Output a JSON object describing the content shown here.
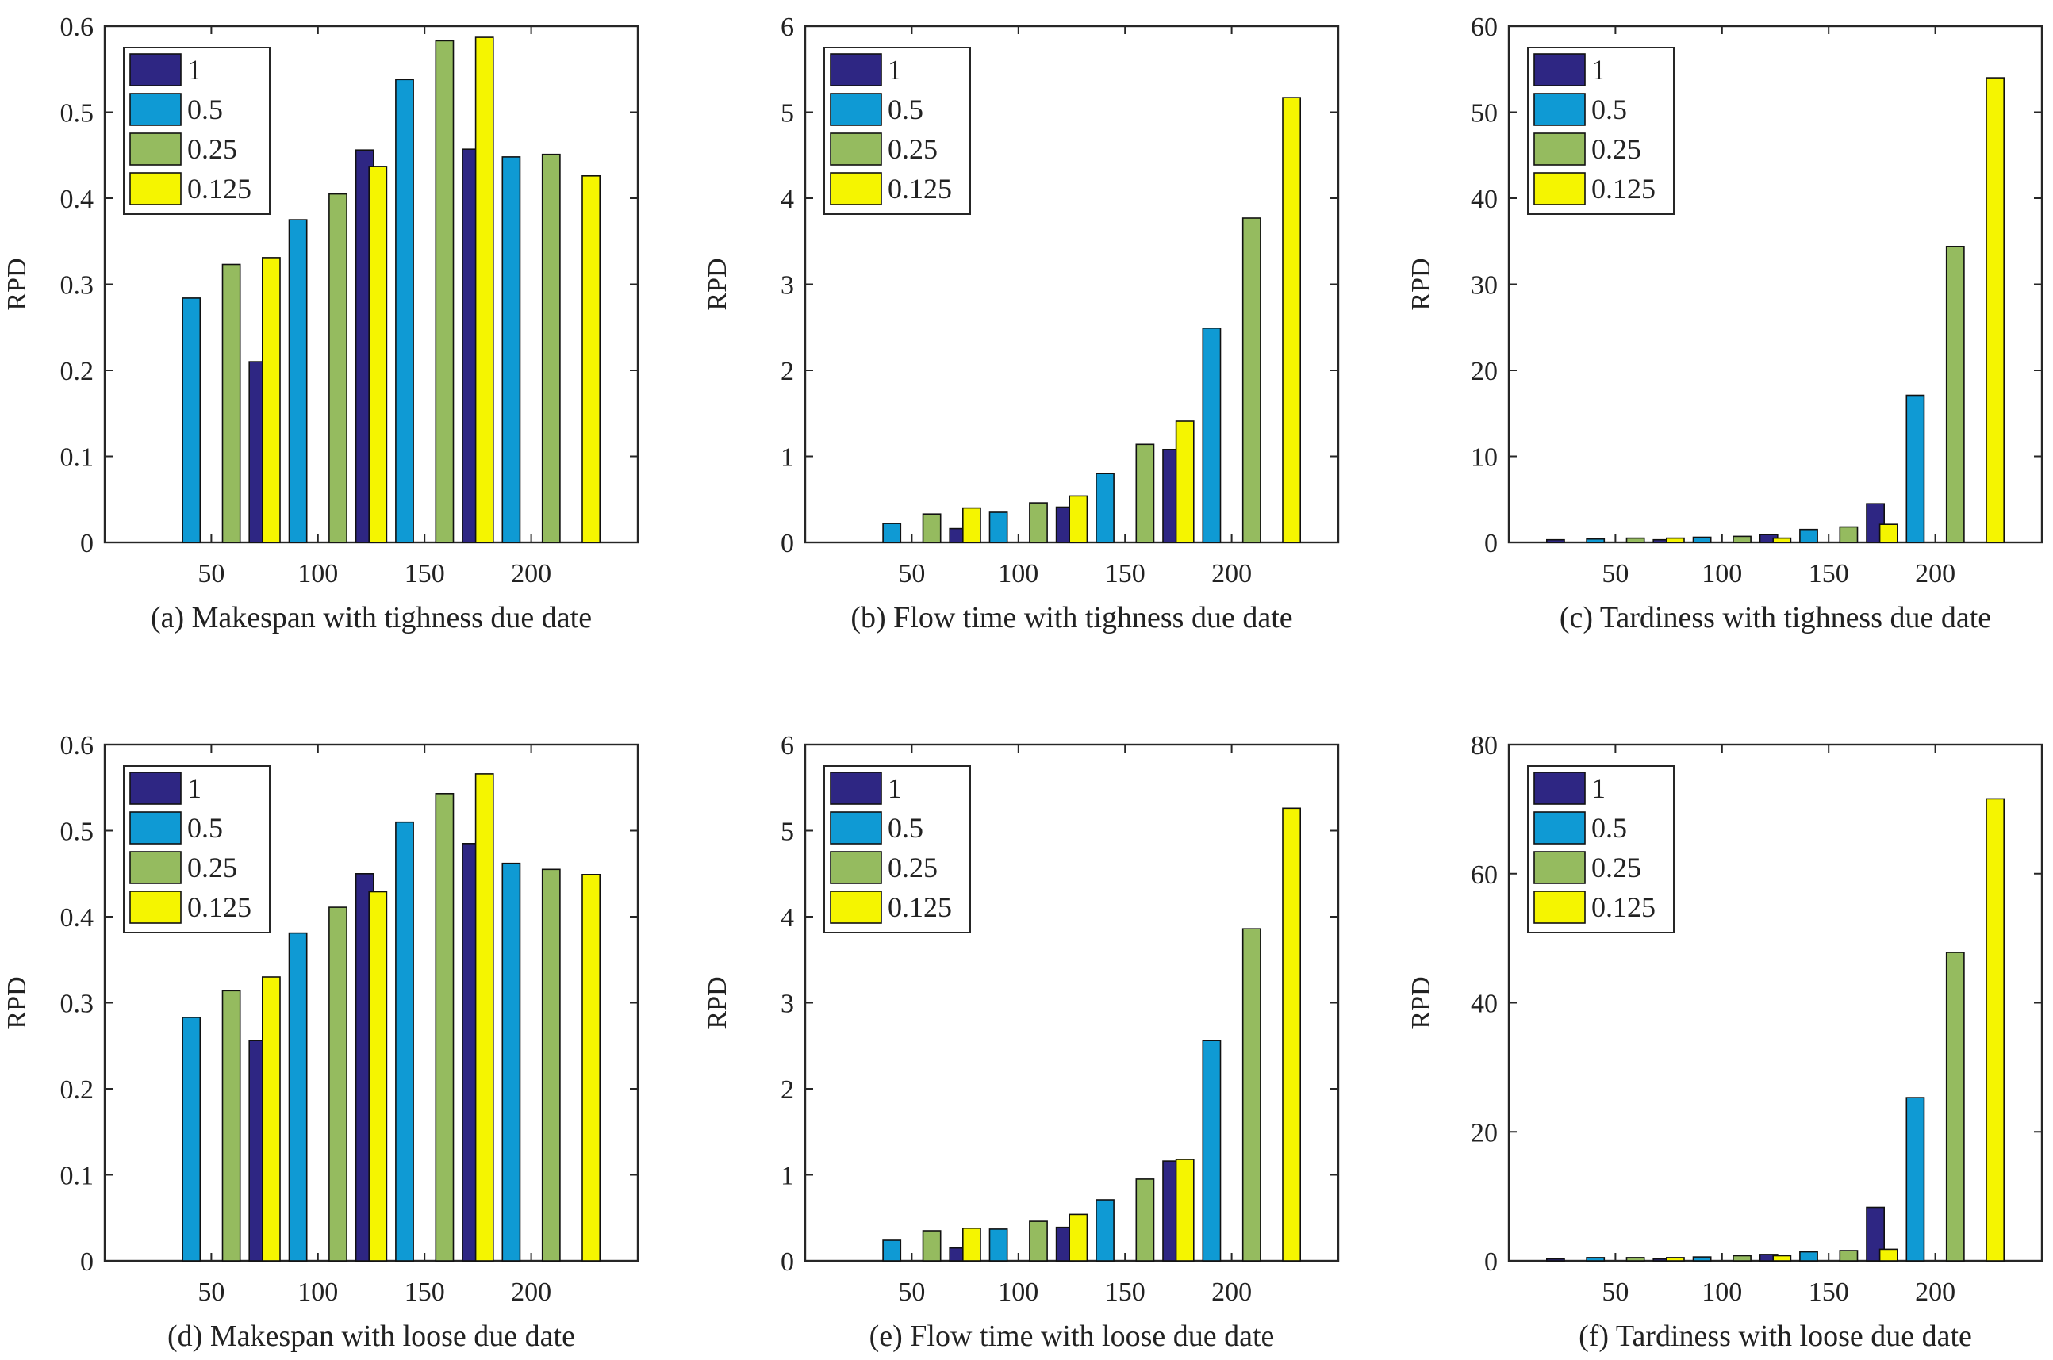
{
  "colors": {
    "series": [
      "#2e2683",
      "#0f9ad4",
      "#95bb5f",
      "#f5f500"
    ],
    "axis": "#262626",
    "background": "#ffffff"
  },
  "chart_data": [
    {
      "type": "bar",
      "caption": "(a) Makespan with tighness due date",
      "ylabel": "RPD",
      "categories": [
        "50",
        "100",
        "150",
        "200"
      ],
      "ylim": [
        0,
        0.6
      ],
      "yticks": [
        0,
        0.1,
        0.2,
        0.3,
        0.4,
        0.5,
        0.6
      ],
      "ytick_labels": [
        "0",
        "0.1",
        "0.2",
        "0.3",
        "0.4",
        "0.5",
        "0.6"
      ],
      "legend": "top-left",
      "series": [
        {
          "name": "1",
          "values": [
            0,
            0.21,
            0.456,
            0.457
          ]
        },
        {
          "name": "0.5",
          "values": [
            0.284,
            0.375,
            0.538,
            0.448
          ]
        },
        {
          "name": "0.25",
          "values": [
            0.323,
            0.405,
            0.583,
            0.451
          ]
        },
        {
          "name": "0.125",
          "values": [
            0.331,
            0.437,
            0.587,
            0.426
          ]
        }
      ]
    },
    {
      "type": "bar",
      "caption": "(b) Flow time with tighness due date",
      "ylabel": "RPD",
      "categories": [
        "50",
        "100",
        "150",
        "200"
      ],
      "ylim": [
        0,
        6
      ],
      "yticks": [
        0,
        1,
        2,
        3,
        4,
        5,
        6
      ],
      "ytick_labels": [
        "0",
        "1",
        "2",
        "3",
        "4",
        "5",
        "6"
      ],
      "legend": "top-left",
      "series": [
        {
          "name": "1",
          "values": [
            0,
            0.16,
            0.41,
            1.08
          ]
        },
        {
          "name": "0.5",
          "values": [
            0.22,
            0.35,
            0.8,
            2.49
          ]
        },
        {
          "name": "0.25",
          "values": [
            0.33,
            0.46,
            1.14,
            3.77
          ]
        },
        {
          "name": "0.125",
          "values": [
            0.4,
            0.54,
            1.41,
            5.17
          ]
        }
      ]
    },
    {
      "type": "bar",
      "caption": "(c) Tardiness with tighness due date",
      "ylabel": "RPD",
      "categories": [
        "50",
        "100",
        "150",
        "200"
      ],
      "ylim": [
        0,
        60
      ],
      "yticks": [
        0,
        10,
        20,
        30,
        40,
        50,
        60
      ],
      "ytick_labels": [
        "0",
        "10",
        "20",
        "30",
        "40",
        "50",
        "60"
      ],
      "legend": "top-left",
      "series": [
        {
          "name": "1",
          "values": [
            0.3,
            0.3,
            0.9,
            4.5
          ]
        },
        {
          "name": "0.5",
          "values": [
            0.4,
            0.6,
            1.5,
            17.1
          ]
        },
        {
          "name": "0.25",
          "values": [
            0.5,
            0.7,
            1.8,
            34.4
          ]
        },
        {
          "name": "0.125",
          "values": [
            0.5,
            0.5,
            2.1,
            54.0
          ]
        }
      ]
    },
    {
      "type": "bar",
      "caption": "(d) Makespan with loose due date",
      "ylabel": "RPD",
      "categories": [
        "50",
        "100",
        "150",
        "200"
      ],
      "ylim": [
        0,
        0.6
      ],
      "yticks": [
        0,
        0.1,
        0.2,
        0.3,
        0.4,
        0.5,
        0.6
      ],
      "ytick_labels": [
        "0",
        "0.1",
        "0.2",
        "0.3",
        "0.4",
        "0.5",
        "0.6"
      ],
      "legend": "top-left",
      "series": [
        {
          "name": "1",
          "values": [
            0,
            0.256,
            0.45,
            0.485
          ]
        },
        {
          "name": "0.5",
          "values": [
            0.283,
            0.381,
            0.51,
            0.462
          ]
        },
        {
          "name": "0.25",
          "values": [
            0.314,
            0.411,
            0.543,
            0.455
          ]
        },
        {
          "name": "0.125",
          "values": [
            0.33,
            0.429,
            0.566,
            0.449
          ]
        }
      ]
    },
    {
      "type": "bar",
      "caption": "(e) Flow time with loose due date",
      "ylabel": "RPD",
      "categories": [
        "50",
        "100",
        "150",
        "200"
      ],
      "ylim": [
        0,
        6
      ],
      "yticks": [
        0,
        1,
        2,
        3,
        4,
        5,
        6
      ],
      "ytick_labels": [
        "0",
        "1",
        "2",
        "3",
        "4",
        "5",
        "6"
      ],
      "legend": "top-left",
      "series": [
        {
          "name": "1",
          "values": [
            0,
            0.15,
            0.39,
            1.16
          ]
        },
        {
          "name": "0.5",
          "values": [
            0.24,
            0.37,
            0.71,
            2.56
          ]
        },
        {
          "name": "0.25",
          "values": [
            0.35,
            0.46,
            0.95,
            3.86
          ]
        },
        {
          "name": "0.125",
          "values": [
            0.38,
            0.54,
            1.18,
            5.26
          ]
        }
      ]
    },
    {
      "type": "bar",
      "caption": "(f) Tardiness with loose due date",
      "ylabel": "RPD",
      "categories": [
        "50",
        "100",
        "150",
        "200"
      ],
      "ylim": [
        0,
        80
      ],
      "yticks": [
        0,
        20,
        40,
        60,
        80
      ],
      "ytick_labels": [
        "0",
        "20",
        "40",
        "60",
        "80"
      ],
      "legend": "top-left",
      "series": [
        {
          "name": "1",
          "values": [
            0.3,
            0.3,
            1.0,
            8.3
          ]
        },
        {
          "name": "0.5",
          "values": [
            0.5,
            0.6,
            1.4,
            25.3
          ]
        },
        {
          "name": "0.25",
          "values": [
            0.5,
            0.8,
            1.6,
            47.8
          ]
        },
        {
          "name": "0.125",
          "values": [
            0.5,
            0.8,
            1.8,
            71.6
          ]
        }
      ]
    }
  ]
}
